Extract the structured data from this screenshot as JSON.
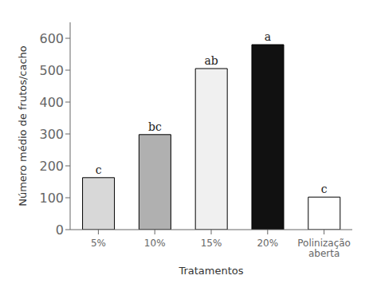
{
  "chart_data": {
    "type": "bar",
    "categories": [
      "5%",
      "10%",
      "15%",
      "20%",
      "Polinização\naberta"
    ],
    "values": [
      163,
      298,
      505,
      580,
      102
    ],
    "annotations": [
      "c",
      "bc",
      "ab",
      "a",
      "c"
    ],
    "colors": [
      "#d8d8d8",
      "#b0b0b0",
      "#f0f0f0",
      "#111111",
      "#ffffff"
    ],
    "xlabel": "Tratamentos",
    "ylabel": "Número médio de frutos/cacho",
    "ylim": [
      0,
      650
    ],
    "yticks": [
      0,
      100,
      200,
      300,
      400,
      500,
      600
    ],
    "grid": false
  }
}
